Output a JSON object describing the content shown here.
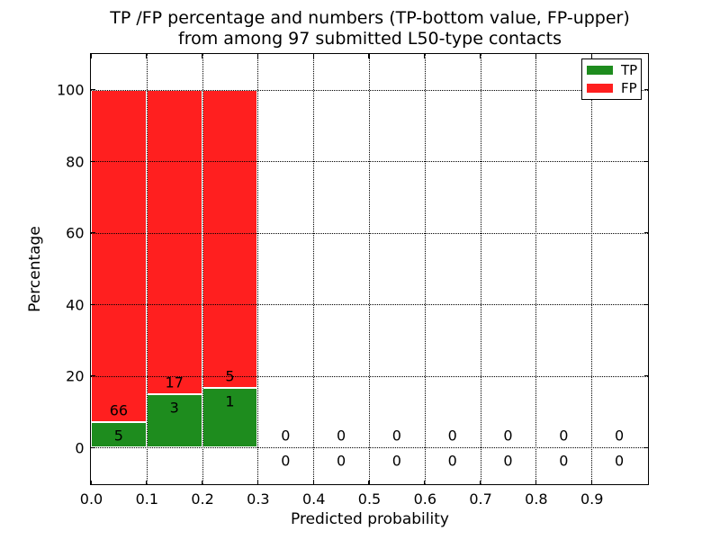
{
  "chart_data": {
    "type": "bar",
    "title_line1": "TP /FP percentage and numbers (TP-bottom value, FP-upper)",
    "title_line2": "from among 97 submitted L50-type contacts",
    "xlabel": "Predicted probability",
    "ylabel": "Percentage",
    "xlim": [
      0.0,
      1.0
    ],
    "ylim": [
      -10,
      110
    ],
    "xticks": [
      "0.0",
      "0.1",
      "0.2",
      "0.3",
      "0.4",
      "0.5",
      "0.6",
      "0.7",
      "0.8",
      "0.9"
    ],
    "yticks": [
      "0",
      "20",
      "40",
      "60",
      "80",
      "100"
    ],
    "grid": "dotted, drawn over bars",
    "legend": {
      "position": "upper right",
      "entries": [
        {
          "label": "TP",
          "color": "#1e8c1e"
        },
        {
          "label": "FP",
          "color": "#ff1f1f"
        }
      ]
    },
    "colors": {
      "tp": "#1e8c1e",
      "fp": "#ff1f1f",
      "bar_edge": "#ffffff"
    },
    "bars": {
      "stacked": true,
      "bin_width": 0.1,
      "bin_starts": [
        0.0,
        0.1,
        0.2,
        0.3,
        0.4,
        0.5,
        0.6,
        0.7,
        0.8,
        0.9
      ],
      "tp_counts": [
        5,
        3,
        1,
        0,
        0,
        0,
        0,
        0,
        0,
        0
      ],
      "fp_counts": [
        66,
        17,
        5,
        0,
        0,
        0,
        0,
        0,
        0,
        0
      ],
      "tp_pct": [
        7.0,
        15.0,
        16.7,
        0,
        0,
        0,
        0,
        0,
        0,
        0
      ],
      "fp_pct": [
        93.0,
        85.0,
        83.3,
        0,
        0,
        0,
        0,
        0,
        0,
        0
      ],
      "note_total_submitted": 97
    }
  }
}
